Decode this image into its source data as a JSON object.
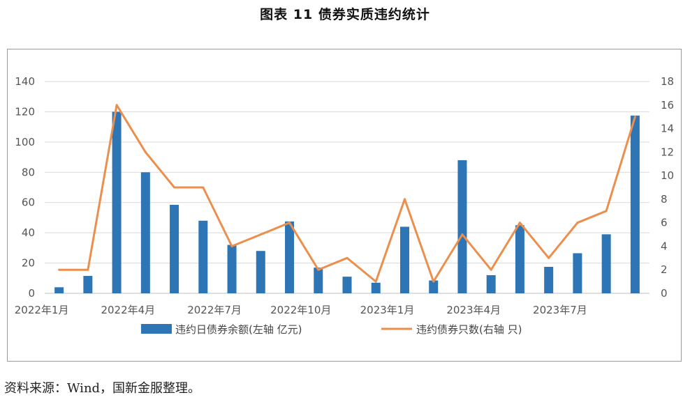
{
  "figure": {
    "title": "图表 11 债券实质违约统计",
    "source": "资料来源：Wind，国新金服整理。"
  },
  "colors": {
    "bar": "#2e75b6",
    "line": "#ed8f4c",
    "grid": "#d9d9d9"
  },
  "chart_data": {
    "type": "bar",
    "categories": [
      "2022-01",
      "2022-02",
      "2022-03",
      "2022-04",
      "2022-05",
      "2022-06",
      "2022-07",
      "2022-08",
      "2022-09",
      "2022-10",
      "2022-11",
      "2022-12",
      "2023-01",
      "2023-02",
      "2023-03",
      "2023-04",
      "2023-05",
      "2023-06",
      "2023-07",
      "2023-08",
      "2023-09"
    ],
    "x_tick_labels": [
      "2022年1月",
      "2022年4月",
      "2022年7月",
      "2022年10月",
      "2023年1月",
      "2023年4月",
      "2023年7月"
    ],
    "series": [
      {
        "name": "违约日债券余额(左轴 亿元)",
        "type": "bar",
        "axis": "left",
        "values": [
          4,
          11.5,
          120,
          80,
          58.5,
          48,
          32,
          28,
          47.5,
          17,
          11,
          7,
          44,
          8.5,
          88,
          12,
          45,
          17.5,
          26.5,
          39,
          117.5
        ]
      },
      {
        "name": "违约债券只数(右轴 只)",
        "type": "line",
        "axis": "right",
        "values": [
          2,
          2,
          16,
          12,
          9,
          9,
          4,
          5,
          6,
          2,
          3,
          1,
          8,
          1,
          5,
          2,
          6,
          3,
          6,
          7,
          15
        ]
      }
    ],
    "y_left": {
      "lim": [
        0,
        140
      ],
      "ticks": [
        0,
        20,
        40,
        60,
        80,
        100,
        120,
        140
      ]
    },
    "y_right": {
      "lim": [
        0,
        18
      ],
      "ticks": [
        0,
        2,
        4,
        6,
        8,
        10,
        12,
        14,
        16,
        18
      ]
    },
    "grid": true,
    "legend": "bottom"
  }
}
